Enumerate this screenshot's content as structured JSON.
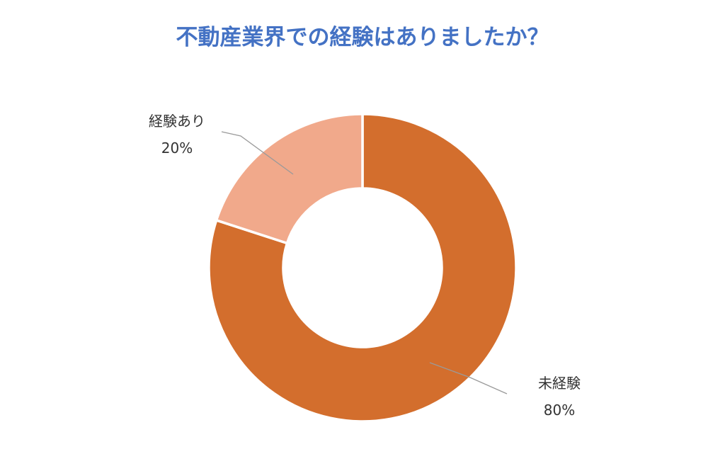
{
  "chart_data": {
    "type": "donut",
    "title": "不動産業界での経験はありましたか？",
    "title_color": "#4472C4",
    "slices": [
      {
        "label": "未経験",
        "value": 80,
        "value_label": "80%",
        "color": "#D36E2D"
      },
      {
        "label": "経験あり",
        "value": 20,
        "value_label": "20%",
        "color": "#F1A98B"
      }
    ],
    "start": "12 o'clock",
    "direction": "clockwise",
    "legend": "none",
    "data_labels": "outside with leader lines"
  }
}
